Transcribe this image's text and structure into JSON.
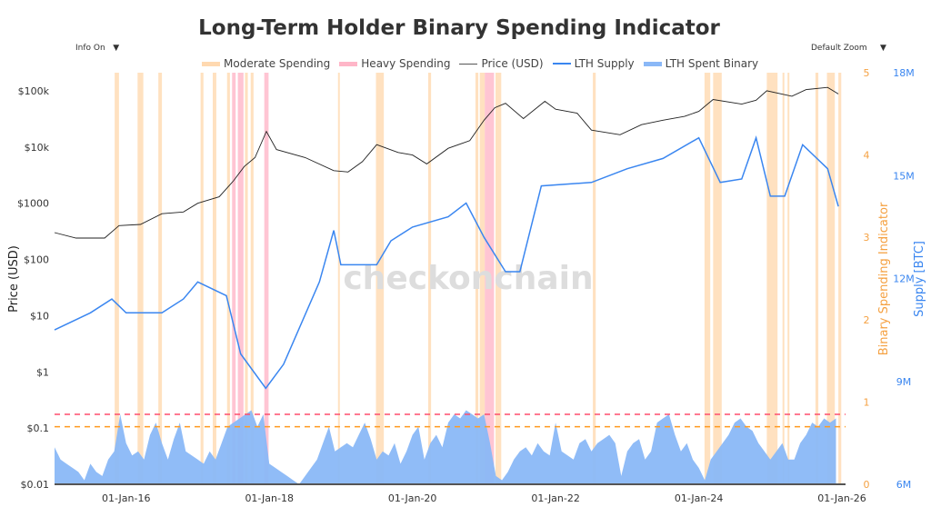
{
  "title": "Long-Term Holder Binary Spending Indicator",
  "controls": {
    "info": "Info On",
    "zoom": "Default Zoom",
    "caret": "▼"
  },
  "watermark": "checkonchain",
  "colors": {
    "moderate": "#ffd9b0",
    "heavy": "#ffb6c8",
    "price": "#222222",
    "supply": "#3a86f0",
    "binary": "#8ab8f7",
    "red_line": "#ff4d6d",
    "orange_line": "#ff9a1f",
    "axis_orange": "#f5a142",
    "axis_blue": "#3a86f0"
  },
  "chart_data": {
    "type": "line",
    "title": "Long-Term Holder Binary Spending Indicator",
    "legend": {
      "placement": "top-center",
      "entries": [
        "Moderate Spending",
        "Heavy Spending",
        "Price (USD)",
        "LTH Supply",
        "LTH Spent Binary"
      ]
    },
    "xaxis": {
      "ticks": [
        "01-Jan-16",
        "01-Jan-18",
        "01-Jan-20",
        "01-Jan-22",
        "01-Jan-24",
        "01-Jan-26"
      ],
      "tick_years": [
        2016,
        2018,
        2020,
        2022,
        2024,
        2026
      ],
      "range": [
        2015.0,
        2026.05
      ]
    },
    "yaxis_price": {
      "label": "Price (USD)",
      "scale": "log",
      "ticks": [
        "$0.01",
        "$0.1",
        "$1",
        "$10",
        "$100",
        "$1000",
        "$10k",
        "$100k"
      ],
      "tick_values": [
        0.01,
        0.1,
        1,
        10,
        100,
        1000,
        10000,
        100000
      ],
      "range": [
        0.01,
        210000
      ]
    },
    "yaxis_binary": {
      "label": "Binary Spending Indicator",
      "ticks": [
        "0",
        "1",
        "2",
        "3",
        "4",
        "5"
      ],
      "range": [
        0,
        5
      ]
    },
    "yaxis_supply": {
      "label": "Supply [BTC]",
      "ticks": [
        "6M",
        "9M",
        "12M",
        "15M",
        "18M"
      ],
      "tick_values": [
        6,
        9,
        12,
        15,
        18
      ],
      "range": [
        6,
        18
      ]
    },
    "thresholds": [
      {
        "value": 0.85,
        "color": "red"
      },
      {
        "value": 0.7,
        "color": "orange"
      }
    ],
    "price": [
      [
        2015.0,
        300
      ],
      [
        2015.3,
        240
      ],
      [
        2015.7,
        240
      ],
      [
        2015.9,
        400
      ],
      [
        2016.2,
        420
      ],
      [
        2016.5,
        650
      ],
      [
        2016.8,
        700
      ],
      [
        2017.0,
        1000
      ],
      [
        2017.3,
        1300
      ],
      [
        2017.5,
        2500
      ],
      [
        2017.65,
        4500
      ],
      [
        2017.8,
        6500
      ],
      [
        2017.96,
        19000
      ],
      [
        2018.1,
        9000
      ],
      [
        2018.5,
        6500
      ],
      [
        2018.9,
        3800
      ],
      [
        2019.1,
        3600
      ],
      [
        2019.3,
        5500
      ],
      [
        2019.5,
        11000
      ],
      [
        2019.8,
        8000
      ],
      [
        2020.0,
        7200
      ],
      [
        2020.2,
        5000
      ],
      [
        2020.5,
        9500
      ],
      [
        2020.8,
        13000
      ],
      [
        2021.0,
        30000
      ],
      [
        2021.15,
        50000
      ],
      [
        2021.3,
        60000
      ],
      [
        2021.55,
        32000
      ],
      [
        2021.85,
        65000
      ],
      [
        2022.0,
        47000
      ],
      [
        2022.3,
        40000
      ],
      [
        2022.5,
        20000
      ],
      [
        2022.9,
        16500
      ],
      [
        2023.2,
        25000
      ],
      [
        2023.5,
        30000
      ],
      [
        2023.8,
        35000
      ],
      [
        2024.0,
        43000
      ],
      [
        2024.2,
        70000
      ],
      [
        2024.6,
        58000
      ],
      [
        2024.8,
        68000
      ],
      [
        2024.95,
        100000
      ],
      [
        2025.3,
        80000
      ],
      [
        2025.5,
        105000
      ],
      [
        2025.8,
        115000
      ],
      [
        2025.95,
        88000
      ]
    ],
    "lth_supply_millions": [
      [
        2015.0,
        10.5
      ],
      [
        2015.5,
        11.0
      ],
      [
        2015.8,
        11.4
      ],
      [
        2016.0,
        11.0
      ],
      [
        2016.5,
        11.0
      ],
      [
        2016.8,
        11.4
      ],
      [
        2017.0,
        11.9
      ],
      [
        2017.4,
        11.5
      ],
      [
        2017.6,
        9.8
      ],
      [
        2017.95,
        8.8
      ],
      [
        2018.2,
        9.5
      ],
      [
        2018.7,
        11.9
      ],
      [
        2018.9,
        13.4
      ],
      [
        2019.0,
        12.4
      ],
      [
        2019.5,
        12.4
      ],
      [
        2019.7,
        13.1
      ],
      [
        2020.0,
        13.5
      ],
      [
        2020.5,
        13.8
      ],
      [
        2020.75,
        14.2
      ],
      [
        2021.0,
        13.2
      ],
      [
        2021.3,
        12.2
      ],
      [
        2021.5,
        12.2
      ],
      [
        2021.8,
        14.7
      ],
      [
        2022.5,
        14.8
      ],
      [
        2023.0,
        15.2
      ],
      [
        2023.5,
        15.5
      ],
      [
        2024.0,
        16.1
      ],
      [
        2024.3,
        14.8
      ],
      [
        2024.6,
        14.9
      ],
      [
        2024.8,
        16.1
      ],
      [
        2025.0,
        14.4
      ],
      [
        2025.2,
        14.4
      ],
      [
        2025.45,
        15.9
      ],
      [
        2025.8,
        15.2
      ],
      [
        2025.95,
        14.1
      ]
    ],
    "binary_start": 2015.0,
    "binary_monthly": [
      0.45,
      0.3,
      0.25,
      0.2,
      0.15,
      0.05,
      0.25,
      0.15,
      0.1,
      0.3,
      0.4,
      0.85,
      0.5,
      0.35,
      0.4,
      0.3,
      0.6,
      0.75,
      0.5,
      0.3,
      0.55,
      0.75,
      0.4,
      0.35,
      0.3,
      0.25,
      0.4,
      0.3,
      0.5,
      0.7,
      0.75,
      0.8,
      0.85,
      0.9,
      0.7,
      0.85,
      0.25,
      0.2,
      0.15,
      0.1,
      0.05,
      0.0,
      0.1,
      0.2,
      0.3,
      0.5,
      0.7,
      0.4,
      0.45,
      0.5,
      0.45,
      0.6,
      0.75,
      0.55,
      0.3,
      0.4,
      0.35,
      0.5,
      0.25,
      0.4,
      0.6,
      0.7,
      0.3,
      0.5,
      0.6,
      0.45,
      0.75,
      0.85,
      0.8,
      0.9,
      0.85,
      0.8,
      0.85,
      0.5,
      0.1,
      0.05,
      0.15,
      0.3,
      0.4,
      0.45,
      0.35,
      0.5,
      0.4,
      0.35,
      0.75,
      0.4,
      0.35,
      0.3,
      0.5,
      0.55,
      0.4,
      0.5,
      0.55,
      0.6,
      0.5,
      0.1,
      0.4,
      0.5,
      0.55,
      0.3,
      0.4,
      0.75,
      0.8,
      0.85,
      0.6,
      0.4,
      0.5,
      0.3,
      0.2,
      0.05,
      0.3,
      0.4,
      0.5,
      0.6,
      0.75,
      0.8,
      0.7,
      0.65,
      0.5,
      0.4,
      0.3,
      0.4,
      0.5,
      0.3,
      0.3,
      0.5,
      0.6,
      0.75,
      0.7,
      0.8,
      0.75,
      0.8
    ],
    "spending_bands": [
      [
        2015.84,
        2015.9,
        "moderate"
      ],
      [
        2016.16,
        2016.24,
        "moderate"
      ],
      [
        2016.45,
        2016.5,
        "moderate"
      ],
      [
        2017.04,
        2017.08,
        "moderate"
      ],
      [
        2017.21,
        2017.26,
        "moderate"
      ],
      [
        2017.41,
        2017.45,
        "moderate"
      ],
      [
        2017.48,
        2017.53,
        "heavy"
      ],
      [
        2017.56,
        2017.64,
        "heavy"
      ],
      [
        2017.66,
        2017.7,
        "moderate"
      ],
      [
        2017.74,
        2017.78,
        "moderate"
      ],
      [
        2017.93,
        2017.99,
        "heavy"
      ],
      [
        2018.96,
        2018.98,
        "moderate"
      ],
      [
        2019.49,
        2019.6,
        "moderate"
      ],
      [
        2020.22,
        2020.26,
        "moderate"
      ],
      [
        2020.88,
        2020.92,
        "moderate"
      ],
      [
        2020.94,
        2021.01,
        "moderate"
      ],
      [
        2021.01,
        2021.14,
        "heavy"
      ],
      [
        2021.16,
        2021.24,
        "moderate"
      ],
      [
        2022.52,
        2022.56,
        "moderate"
      ],
      [
        2024.08,
        2024.16,
        "moderate"
      ],
      [
        2024.2,
        2024.32,
        "moderate"
      ],
      [
        2024.95,
        2025.1,
        "moderate"
      ],
      [
        2025.17,
        2025.19,
        "moderate"
      ],
      [
        2025.24,
        2025.26,
        "moderate"
      ],
      [
        2025.63,
        2025.67,
        "moderate"
      ],
      [
        2025.79,
        2025.9,
        "moderate"
      ],
      [
        2025.95,
        2025.99,
        "moderate"
      ]
    ]
  }
}
